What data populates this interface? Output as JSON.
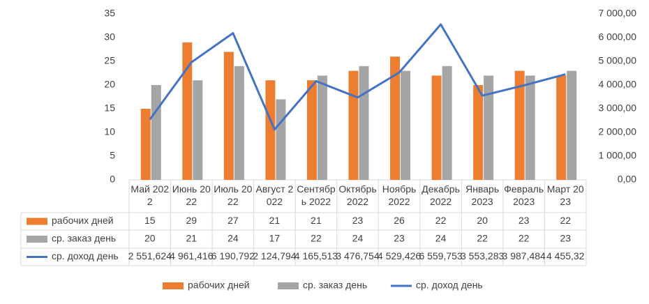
{
  "chart_data": {
    "type": "bar",
    "categories": [
      "Май 2022",
      "Июнь 2022",
      "Июль 2022",
      "Август 2022",
      "Сентябрь 2022",
      "Октябрь 2022",
      "Ноябрь 2022",
      "Декабрь 2022",
      "Январь 2023",
      "Февраль 2023",
      "Март 2023"
    ],
    "series": [
      {
        "name": "рабочих дней",
        "color": "#ED7D31",
        "type": "bar",
        "values": [
          15,
          29,
          27,
          21,
          21,
          23,
          26,
          22,
          20,
          23,
          22
        ]
      },
      {
        "name": "ср. заказ день",
        "color": "#A5A5A5",
        "type": "bar",
        "values": [
          20,
          21,
          24,
          17,
          22,
          24,
          23,
          24,
          22,
          22,
          23
        ]
      },
      {
        "name": "ср. доход день",
        "color": "#4472C4",
        "type": "line",
        "axis": "y2",
        "values": [
          2551.624,
          4961.416,
          6190.792,
          2124.794,
          4165.513,
          3476.754,
          4529.426,
          6559.753,
          3553.283,
          3987.484,
          4455.32
        ],
        "value_labels": [
          "2 551,624",
          "4 961,416",
          "6 190,792",
          "2 124,794",
          "4 165,513",
          "3 476,754",
          "4 529,426",
          "6 559,753",
          "3 553,283",
          "3 987,484",
          "4 455,32"
        ]
      }
    ],
    "ylim": [
      0,
      35
    ],
    "yticks": [
      0,
      5,
      10,
      15,
      20,
      25,
      30,
      35
    ],
    "y2lim": [
      0,
      7000
    ],
    "y2ticks": [
      {
        "value": 0,
        "label": "0,00"
      },
      {
        "value": 1000,
        "label": "1 000,00"
      },
      {
        "value": 2000,
        "label": "2 000,00"
      },
      {
        "value": 3000,
        "label": "3 000,00"
      },
      {
        "value": 4000,
        "label": "4 000,00"
      },
      {
        "value": 5000,
        "label": "5 000,00"
      },
      {
        "value": 6000,
        "label": "6 000,00"
      },
      {
        "value": 7000,
        "label": "7 000,00"
      }
    ],
    "grid": false,
    "legend": "bottom"
  }
}
